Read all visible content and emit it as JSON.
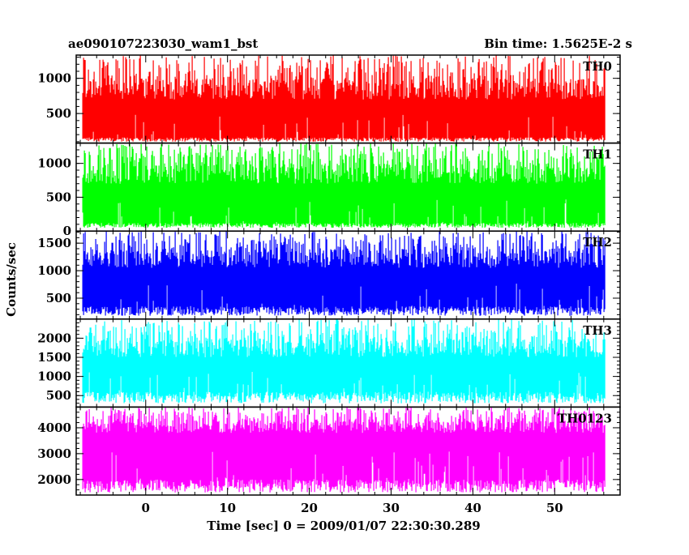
{
  "chart_data": {
    "type": "line",
    "title_left": "ae090107223030_wam1_bst",
    "title_right": "Bin time: 1.5625E-2 s",
    "xlabel": "Time [sec] 0 = 2009/01/07 22:30:30.289",
    "ylabel": "Counts/sec",
    "xlim": [
      -8.5,
      58
    ],
    "x_tick_values": [
      0,
      10,
      20,
      30,
      40,
      50
    ],
    "x_tick_labels": [
      "0",
      "10",
      "20",
      "30",
      "40",
      "50"
    ],
    "x_data_range": [
      -7.7,
      56.2
    ],
    "grid": false,
    "series": [
      {
        "name": "TH0",
        "color": "#ff0000",
        "ylim": [
          80,
          1330
        ],
        "y_tick_values": [
          500,
          1000
        ],
        "y_tick_labels": [
          "500",
          "1000"
        ],
        "base_range": [
          100,
          160
        ],
        "body_range": [
          700,
          1000
        ],
        "peak_range": [
          1000,
          1330
        ]
      },
      {
        "name": "TH1",
        "color": "#00ff00",
        "ylim": [
          0,
          1300
        ],
        "y_tick_values": [
          0,
          500,
          1000
        ],
        "y_tick_labels": [
          "0",
          "500",
          "1000"
        ],
        "base_range": [
          50,
          120
        ],
        "body_range": [
          700,
          1000
        ],
        "peak_range": [
          1000,
          1300
        ]
      },
      {
        "name": "TH2",
        "color": "#0000ff",
        "ylim": [
          120,
          1720
        ],
        "y_tick_values": [
          500,
          1000,
          1500
        ],
        "y_tick_labels": [
          "500",
          "1000",
          "1500"
        ],
        "base_range": [
          180,
          350
        ],
        "body_range": [
          1050,
          1400
        ],
        "peak_range": [
          1400,
          1720
        ]
      },
      {
        "name": "TH3",
        "color": "#00ffff",
        "ylim": [
          200,
          2500
        ],
        "y_tick_values": [
          500,
          1000,
          1500,
          2000
        ],
        "y_tick_labels": [
          "500",
          "1000",
          "1500",
          "2000"
        ],
        "base_range": [
          300,
          600
        ],
        "body_range": [
          1500,
          2000
        ],
        "peak_range": [
          2000,
          2500
        ]
      },
      {
        "name": "TH0123",
        "color": "#ff00ff",
        "ylim": [
          1400,
          4800
        ],
        "y_tick_values": [
          2000,
          3000,
          4000
        ],
        "y_tick_labels": [
          "2000",
          "3000",
          "4000"
        ],
        "base_range": [
          1500,
          2000
        ],
        "body_range": [
          3800,
          4300
        ],
        "peak_range": [
          4300,
          4800
        ]
      }
    ]
  }
}
